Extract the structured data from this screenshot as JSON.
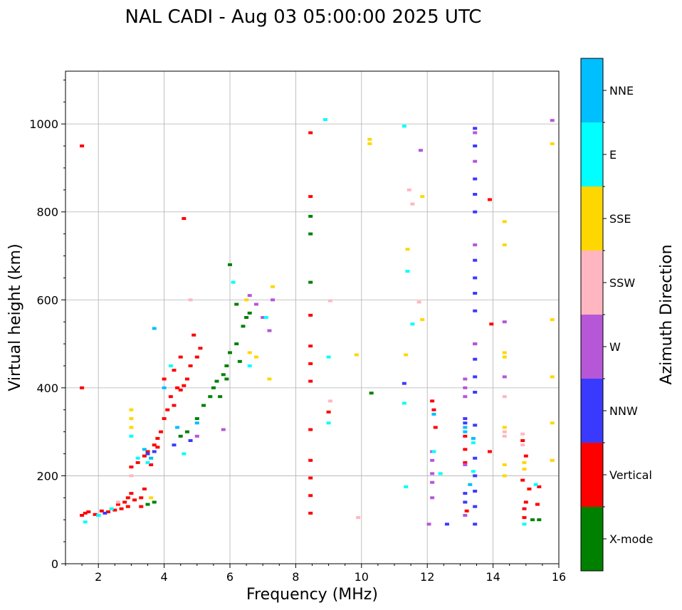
{
  "chart_data": {
    "type": "scatter",
    "title": "NAL CADI - Aug 03 05:00:00 2025 UTC",
    "xlabel": "Frequency (MHz)",
    "ylabel": "Virtual height (km)",
    "xlim": [
      1,
      16
    ],
    "ylim": [
      0,
      1120
    ],
    "xticks": [
      2,
      4,
      6,
      8,
      10,
      12,
      14,
      16
    ],
    "yticks": [
      0,
      200,
      400,
      600,
      800,
      1000
    ],
    "grid": true,
    "colorbar": {
      "label": "Azimuth Direction",
      "categories": [
        {
          "name": "X-mode",
          "color": "#008000"
        },
        {
          "name": "Vertical",
          "color": "#ff0000"
        },
        {
          "name": "NNW",
          "color": "#3a3aff"
        },
        {
          "name": "W",
          "color": "#b557d6"
        },
        {
          "name": "SSW",
          "color": "#ffb6c1"
        },
        {
          "name": "SSE",
          "color": "#ffd700"
        },
        {
          "name": "E",
          "color": "#00ffff"
        },
        {
          "name": "NNE",
          "color": "#00bfff"
        }
      ]
    },
    "series": [
      {
        "name": "Vertical",
        "points": [
          [
            1.5,
            110
          ],
          [
            1.6,
            115
          ],
          [
            1.7,
            118
          ],
          [
            1.9,
            112
          ],
          [
            2.1,
            120
          ],
          [
            2.3,
            118
          ],
          [
            2.5,
            122
          ],
          [
            2.6,
            135
          ],
          [
            2.8,
            140
          ],
          [
            2.9,
            150
          ],
          [
            3.0,
            160
          ],
          [
            3.1,
            145
          ],
          [
            3.3,
            130
          ],
          [
            3.0,
            220
          ],
          [
            3.2,
            230
          ],
          [
            3.4,
            245
          ],
          [
            3.5,
            255
          ],
          [
            3.7,
            270
          ],
          [
            3.8,
            285
          ],
          [
            3.9,
            300
          ],
          [
            4.0,
            330
          ],
          [
            4.1,
            350
          ],
          [
            4.2,
            380
          ],
          [
            4.0,
            420
          ],
          [
            4.4,
            400
          ],
          [
            4.5,
            395
          ],
          [
            4.6,
            405
          ],
          [
            4.7,
            420
          ],
          [
            4.8,
            450
          ],
          [
            5.0,
            470
          ],
          [
            5.1,
            490
          ],
          [
            4.9,
            520
          ],
          [
            3.6,
            225
          ],
          [
            3.8,
            265
          ],
          [
            4.3,
            360
          ],
          [
            4.6,
            785
          ],
          [
            1.5,
            950
          ],
          [
            1.5,
            400
          ],
          [
            8.45,
            980
          ],
          [
            8.45,
            835
          ],
          [
            8.45,
            565
          ],
          [
            8.45,
            495
          ],
          [
            8.45,
            455
          ],
          [
            8.45,
            415
          ],
          [
            8.45,
            305
          ],
          [
            8.45,
            235
          ],
          [
            8.45,
            195
          ],
          [
            8.45,
            155
          ],
          [
            8.45,
            115
          ],
          [
            9.0,
            345
          ],
          [
            13.95,
            545
          ],
          [
            13.9,
            255
          ],
          [
            13.9,
            828
          ],
          [
            12.15,
            370
          ],
          [
            12.2,
            350
          ],
          [
            12.25,
            310
          ],
          [
            14.9,
            280
          ],
          [
            15.0,
            245
          ],
          [
            14.9,
            190
          ],
          [
            15.1,
            170
          ],
          [
            15.0,
            140
          ],
          [
            15.4,
            175
          ],
          [
            15.35,
            135
          ],
          [
            14.95,
            105
          ],
          [
            14.95,
            125
          ],
          [
            13.15,
            290
          ],
          [
            13.15,
            260
          ],
          [
            13.15,
            230
          ],
          [
            13.2,
            120
          ],
          [
            3.3,
            150
          ],
          [
            3.4,
            170
          ],
          [
            2.7,
            125
          ],
          [
            2.9,
            130
          ],
          [
            4.3,
            440
          ],
          [
            4.5,
            470
          ]
        ]
      },
      {
        "name": "X-mode",
        "points": [
          [
            3.5,
            135
          ],
          [
            3.7,
            140
          ],
          [
            4.5,
            290
          ],
          [
            4.7,
            300
          ],
          [
            5.0,
            330
          ],
          [
            5.2,
            360
          ],
          [
            5.4,
            380
          ],
          [
            5.5,
            400
          ],
          [
            5.6,
            415
          ],
          [
            5.8,
            430
          ],
          [
            5.9,
            450
          ],
          [
            6.0,
            480
          ],
          [
            6.2,
            500
          ],
          [
            6.4,
            540
          ],
          [
            6.6,
            570
          ],
          [
            6.2,
            590
          ],
          [
            6.0,
            680
          ],
          [
            5.7,
            380
          ],
          [
            6.3,
            460
          ],
          [
            8.45,
            790
          ],
          [
            8.45,
            750
          ],
          [
            8.45,
            640
          ],
          [
            10.3,
            388
          ],
          [
            15.4,
            100
          ],
          [
            15.2,
            100
          ],
          [
            6.5,
            560
          ],
          [
            5.9,
            420
          ]
        ]
      },
      {
        "name": "NNW",
        "points": [
          [
            2.0,
            110
          ],
          [
            2.2,
            115
          ],
          [
            3.5,
            250
          ],
          [
            3.7,
            255
          ],
          [
            4.3,
            270
          ],
          [
            4.8,
            280
          ],
          [
            13.45,
            990
          ],
          [
            13.45,
            950
          ],
          [
            13.45,
            875
          ],
          [
            13.45,
            840
          ],
          [
            13.45,
            800
          ],
          [
            13.45,
            690
          ],
          [
            13.45,
            650
          ],
          [
            13.45,
            615
          ],
          [
            13.45,
            575
          ],
          [
            13.45,
            500
          ],
          [
            13.45,
            465
          ],
          [
            13.45,
            425
          ],
          [
            13.45,
            390
          ],
          [
            13.45,
            315
          ],
          [
            13.45,
            240
          ],
          [
            13.45,
            200
          ],
          [
            13.45,
            165
          ],
          [
            13.45,
            130
          ],
          [
            13.45,
            90
          ],
          [
            12.6,
            90
          ],
          [
            13.15,
            330
          ],
          [
            13.15,
            320
          ],
          [
            13.15,
            160
          ],
          [
            13.15,
            140
          ],
          [
            11.3,
            410
          ]
        ]
      },
      {
        "name": "W",
        "points": [
          [
            6.6,
            610
          ],
          [
            6.8,
            590
          ],
          [
            7.0,
            560
          ],
          [
            7.2,
            530
          ],
          [
            7.3,
            600
          ],
          [
            5.0,
            290
          ],
          [
            5.8,
            305
          ],
          [
            11.8,
            940
          ],
          [
            13.45,
            980
          ],
          [
            13.45,
            915
          ],
          [
            13.45,
            725
          ],
          [
            13.45,
            500
          ],
          [
            14.35,
            550
          ],
          [
            14.35,
            425
          ],
          [
            13.15,
            420
          ],
          [
            13.15,
            400
          ],
          [
            13.15,
            380
          ],
          [
            13.15,
            225
          ],
          [
            13.15,
            110
          ],
          [
            12.15,
            255
          ],
          [
            12.15,
            235
          ],
          [
            12.15,
            205
          ],
          [
            12.15,
            185
          ],
          [
            12.15,
            150
          ],
          [
            12.05,
            90
          ],
          [
            15.8,
            1008
          ]
        ]
      },
      {
        "name": "SSW",
        "points": [
          [
            2.6,
            140
          ],
          [
            3.0,
            200
          ],
          [
            3.6,
            240
          ],
          [
            4.8,
            600
          ],
          [
            9.05,
            598
          ],
          [
            11.45,
            850
          ],
          [
            11.55,
            818
          ],
          [
            11.75,
            595
          ],
          [
            14.35,
            380
          ],
          [
            14.35,
            300
          ],
          [
            14.35,
            290
          ],
          [
            14.9,
            295
          ],
          [
            14.9,
            270
          ],
          [
            15.8,
            235
          ],
          [
            9.05,
            370
          ],
          [
            9.9,
            105
          ]
        ]
      },
      {
        "name": "SSE",
        "points": [
          [
            3.0,
            350
          ],
          [
            3.0,
            330
          ],
          [
            3.0,
            310
          ],
          [
            3.6,
            150
          ],
          [
            6.6,
            480
          ],
          [
            6.8,
            470
          ],
          [
            7.2,
            420
          ],
          [
            7.3,
            630
          ],
          [
            10.25,
            965
          ],
          [
            10.25,
            955
          ],
          [
            11.4,
            715
          ],
          [
            11.85,
            835
          ],
          [
            11.85,
            555
          ],
          [
            11.35,
            475
          ],
          [
            14.35,
            778
          ],
          [
            14.35,
            725
          ],
          [
            14.35,
            480
          ],
          [
            14.35,
            470
          ],
          [
            14.35,
            310
          ],
          [
            14.35,
            225
          ],
          [
            14.35,
            200
          ],
          [
            15.8,
            955
          ],
          [
            15.8,
            555
          ],
          [
            15.8,
            425
          ],
          [
            15.8,
            320
          ],
          [
            15.8,
            235
          ],
          [
            14.95,
            230
          ],
          [
            14.95,
            215
          ],
          [
            9.85,
            475
          ],
          [
            6.5,
            600
          ]
        ]
      },
      {
        "name": "E",
        "points": [
          [
            1.6,
            95
          ],
          [
            2.0,
            110
          ],
          [
            2.4,
            125
          ],
          [
            3.0,
            290
          ],
          [
            3.2,
            240
          ],
          [
            3.5,
            230
          ],
          [
            4.2,
            450
          ],
          [
            4.6,
            250
          ],
          [
            6.1,
            640
          ],
          [
            6.6,
            450
          ],
          [
            7.1,
            560
          ],
          [
            8.9,
            1010
          ],
          [
            9.0,
            470
          ],
          [
            9.0,
            320
          ],
          [
            11.3,
            995
          ],
          [
            11.4,
            665
          ],
          [
            11.55,
            545
          ],
          [
            11.3,
            365
          ],
          [
            11.35,
            175
          ],
          [
            12.4,
            205
          ],
          [
            12.2,
            255
          ],
          [
            13.4,
            275
          ],
          [
            13.4,
            210
          ],
          [
            14.95,
            90
          ],
          [
            15.3,
            180
          ]
        ]
      },
      {
        "name": "NNE",
        "points": [
          [
            3.7,
            535
          ],
          [
            3.6,
            240
          ],
          [
            3.4,
            260
          ],
          [
            4.0,
            400
          ],
          [
            4.4,
            310
          ],
          [
            5.0,
            320
          ],
          [
            13.15,
            310
          ],
          [
            13.15,
            300
          ],
          [
            13.4,
            285
          ],
          [
            12.2,
            340
          ],
          [
            13.3,
            180
          ]
        ]
      }
    ]
  }
}
